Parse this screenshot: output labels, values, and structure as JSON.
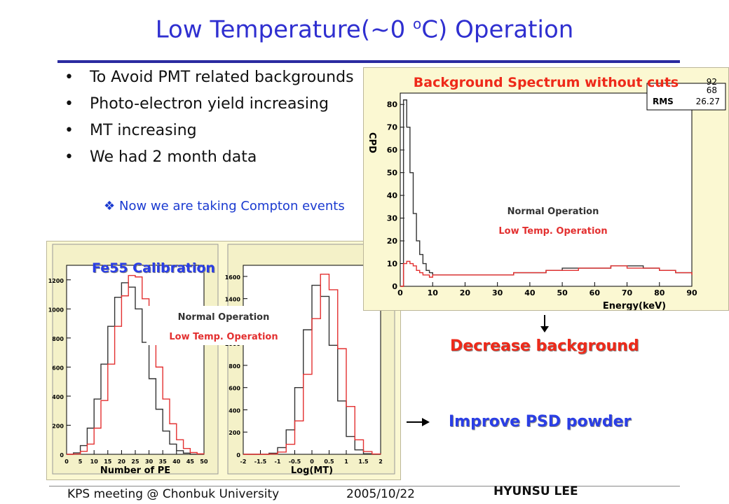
{
  "slide": {
    "title_main": "Low Temperature(~0 ",
    "title_sup": "o",
    "title_end": "C) Operation",
    "bullets": [
      "To Avoid PMT related backgrounds",
      "Photo-electron yield increasing",
      "MT increasing",
      "We had 2 month data"
    ],
    "sub_bullet": "Now we are taking Compton events",
    "right_plot_title": "Background Spectrum without cuts",
    "left_plot_title": "Fe55 Calibration",
    "decrease_label": "Decrease background",
    "improve_label": "Improve PSD powder",
    "footer_left": "KPS meeting @ Chonbuk University",
    "footer_date": "2005/10/22",
    "footer_author": "HYUNSU LEE",
    "legend_normal": "Normal Operation",
    "legend_lowtemp": "Low Temp. Operation",
    "stats": {
      "value1": "92",
      "value2": "68",
      "rms_label": "RMS",
      "rms_value": "26.27"
    },
    "colors": {
      "title": "#2f2fd0",
      "rule": "#2a2aa0",
      "normal": "#333333",
      "lowtemp": "#e33030",
      "panel_bg": "#fbf8d2",
      "caption_red": "#ee2a1a",
      "caption_blue": "#2a3ee6"
    }
  },
  "chart_data": [
    {
      "type": "line",
      "title": "Background Spectrum without cuts",
      "xlabel": "Energy(keV)",
      "ylabel": "CPD",
      "xlim": [
        0,
        90
      ],
      "ylim": [
        0,
        85
      ],
      "xticks": [
        0,
        10,
        20,
        30,
        40,
        50,
        60,
        70,
        80,
        90
      ],
      "yticks": [
        0,
        10,
        20,
        30,
        40,
        50,
        60,
        70,
        80
      ],
      "legend": "center",
      "x": [
        0,
        1,
        2,
        3,
        4,
        5,
        6,
        7,
        8,
        9,
        10,
        12,
        15,
        20,
        25,
        30,
        35,
        40,
        45,
        50,
        55,
        60,
        65,
        70,
        75,
        80,
        85,
        90
      ],
      "series": [
        {
          "name": "Normal Operation",
          "values": [
            0,
            82,
            70,
            50,
            32,
            20,
            14,
            10,
            7,
            6,
            5,
            5,
            5,
            5,
            5,
            5,
            6,
            6,
            7,
            8,
            8,
            8,
            9,
            9,
            8,
            7,
            6,
            5
          ]
        },
        {
          "name": "Low Temp. Operation",
          "values": [
            0,
            10,
            11,
            10,
            9,
            7,
            6,
            5,
            5,
            4,
            5,
            5,
            5,
            5,
            5,
            5,
            6,
            6,
            7,
            7,
            8,
            8,
            9,
            8,
            8,
            7,
            6,
            5
          ]
        }
      ]
    },
    {
      "type": "line",
      "xlabel": "Number of PE",
      "ylabel": "",
      "xlim": [
        0,
        50
      ],
      "ylim": [
        0,
        1300
      ],
      "xticks": [
        0,
        5,
        10,
        15,
        20,
        25,
        30,
        35,
        40,
        45,
        50
      ],
      "yticks": [
        0,
        200,
        400,
        600,
        800,
        1000,
        1200
      ],
      "x": [
        0,
        2.5,
        5,
        7.5,
        10,
        12.5,
        15,
        17.5,
        20,
        22.5,
        25,
        27.5,
        30,
        32.5,
        35,
        37.5,
        40,
        42.5,
        45,
        47.5,
        50
      ],
      "series": [
        {
          "name": "Normal Operation",
          "values": [
            0,
            10,
            60,
            180,
            380,
            620,
            880,
            1080,
            1180,
            1150,
            1000,
            770,
            520,
            310,
            160,
            70,
            25,
            8,
            0,
            0,
            0
          ]
        },
        {
          "name": "Low Temp. Operation",
          "values": [
            0,
            2,
            20,
            70,
            180,
            370,
            620,
            880,
            1090,
            1230,
            1220,
            1070,
            840,
            600,
            380,
            210,
            100,
            40,
            12,
            3,
            0
          ]
        }
      ]
    },
    {
      "type": "line",
      "xlabel": "Log(MT)",
      "ylabel": "",
      "xlim": [
        -2,
        2
      ],
      "ylim": [
        0,
        1700
      ],
      "xticks": [
        -2,
        -1.5,
        -1,
        -0.5,
        0,
        0.5,
        1,
        1.5,
        2
      ],
      "yticks": [
        0,
        200,
        400,
        600,
        800,
        1000,
        1200,
        1400,
        1600
      ],
      "x": [
        -2,
        -1.5,
        -1.25,
        -1,
        -0.75,
        -0.5,
        -0.25,
        0,
        0.25,
        0.5,
        0.75,
        1,
        1.25,
        1.5,
        1.75,
        2
      ],
      "series": [
        {
          "name": "Normal Operation",
          "values": [
            0,
            0,
            10,
            60,
            220,
            600,
            1120,
            1520,
            1420,
            980,
            480,
            160,
            40,
            5,
            0,
            0
          ]
        },
        {
          "name": "Low Temp. Operation",
          "values": [
            0,
            0,
            3,
            20,
            90,
            300,
            720,
            1220,
            1620,
            1480,
            950,
            430,
            130,
            25,
            3,
            0
          ]
        }
      ]
    }
  ]
}
